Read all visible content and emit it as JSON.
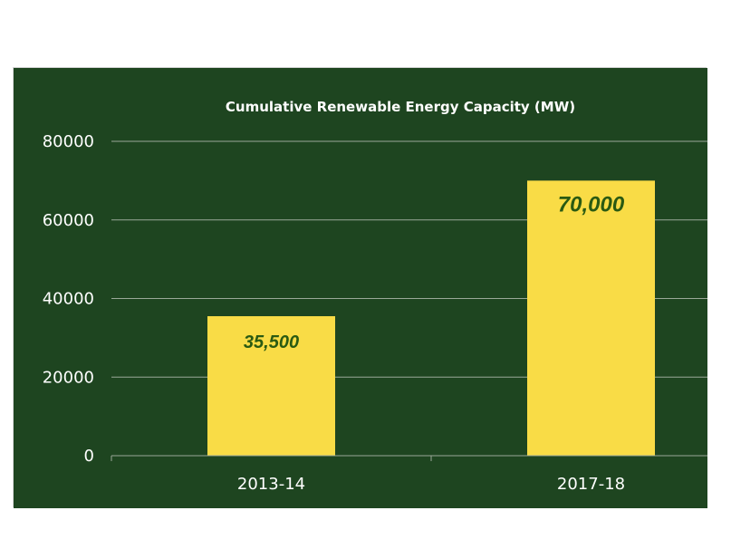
{
  "colors": {
    "background": "#1e4520",
    "bar": "#f9dc46",
    "gridline": "#9aa898",
    "axis_text": "#ffffff",
    "data_label": "#2a5a12"
  },
  "chart_data": {
    "type": "bar",
    "title": "Cumulative Renewable Energy Capacity (MW)",
    "categories": [
      "2013-14",
      "2017-18"
    ],
    "values": [
      35500,
      70000
    ],
    "data_labels": [
      "35,500",
      "70,000"
    ],
    "xlabel": "",
    "ylabel": "",
    "ylim": [
      0,
      80000
    ],
    "yticks": [
      0,
      20000,
      40000,
      60000,
      80000
    ],
    "grid": true,
    "legend": "none"
  }
}
